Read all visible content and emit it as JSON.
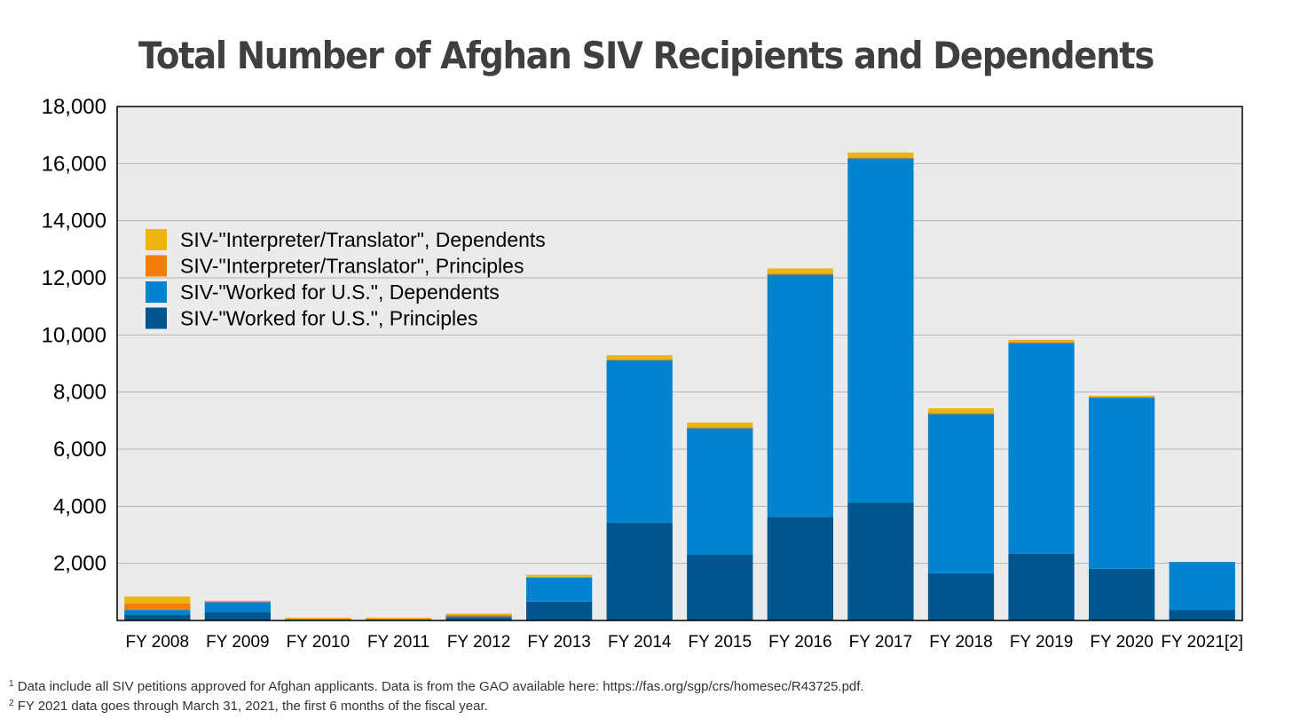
{
  "title": "Total Number of Afghan SIV Recipients and Dependents",
  "footnotes": [
    {
      "mark": "1",
      "text": "Data include all SIV petitions approved for Afghan applicants. Data is from the GAO available here: https://fas.org/sgp/crs/homesec/R43725.pdf."
    },
    {
      "mark": "2",
      "text": "FY 2021 data goes through March 31, 2021, the first 6 months of the fiscal year."
    }
  ],
  "chart_data": {
    "type": "bar",
    "stacked": true,
    "title": "Total Number of Afghan SIV Recipients and Dependents",
    "xlabel": "",
    "ylabel": "",
    "ylim": [
      0,
      18000
    ],
    "yticks": [
      "2,000",
      "4,000",
      "6,000",
      "8,000",
      "10,000",
      "12,000",
      "14,000",
      "16,000",
      "18,000"
    ],
    "ytick_values": [
      2000,
      4000,
      6000,
      8000,
      10000,
      12000,
      14000,
      16000,
      18000
    ],
    "grid": true,
    "legend_position": "upper-left",
    "categories": [
      "FY 2008",
      "FY 2009",
      "FY 2010",
      "FY 2011",
      "FY 2012",
      "FY 2013",
      "FY 2014",
      "FY 2015",
      "FY 2016",
      "FY 2017",
      "FY 2018",
      "FY 2019",
      "FY 2020",
      "FY 2021[2]"
    ],
    "series": [
      {
        "name": "SIV-\"Worked for U.S.\", Principles",
        "color": "#00558f",
        "values": [
          200,
          300,
          20,
          20,
          90,
          660,
          3430,
          2300,
          3630,
          4120,
          1650,
          2340,
          1810,
          370
        ]
      },
      {
        "name": "SIV-\"Worked for U.S.\", Dependents",
        "color": "#0283cf",
        "values": [
          170,
          340,
          10,
          10,
          50,
          840,
          5680,
          4430,
          8480,
          12060,
          5580,
          7380,
          5990,
          1680
        ]
      },
      {
        "name": "SIV-\"Interpreter/Translator\", Principles",
        "color": "#f27f0c",
        "values": [
          230,
          30,
          40,
          40,
          50,
          30,
          30,
          30,
          30,
          30,
          40,
          30,
          30,
          0
        ]
      },
      {
        "name": "SIV-\"Interpreter/Translator\", Dependents",
        "color": "#f0b40f",
        "values": [
          240,
          20,
          30,
          30,
          50,
          70,
          150,
          170,
          190,
          180,
          160,
          80,
          40,
          0
        ]
      }
    ],
    "legend_order": [
      3,
      2,
      1,
      0
    ]
  }
}
